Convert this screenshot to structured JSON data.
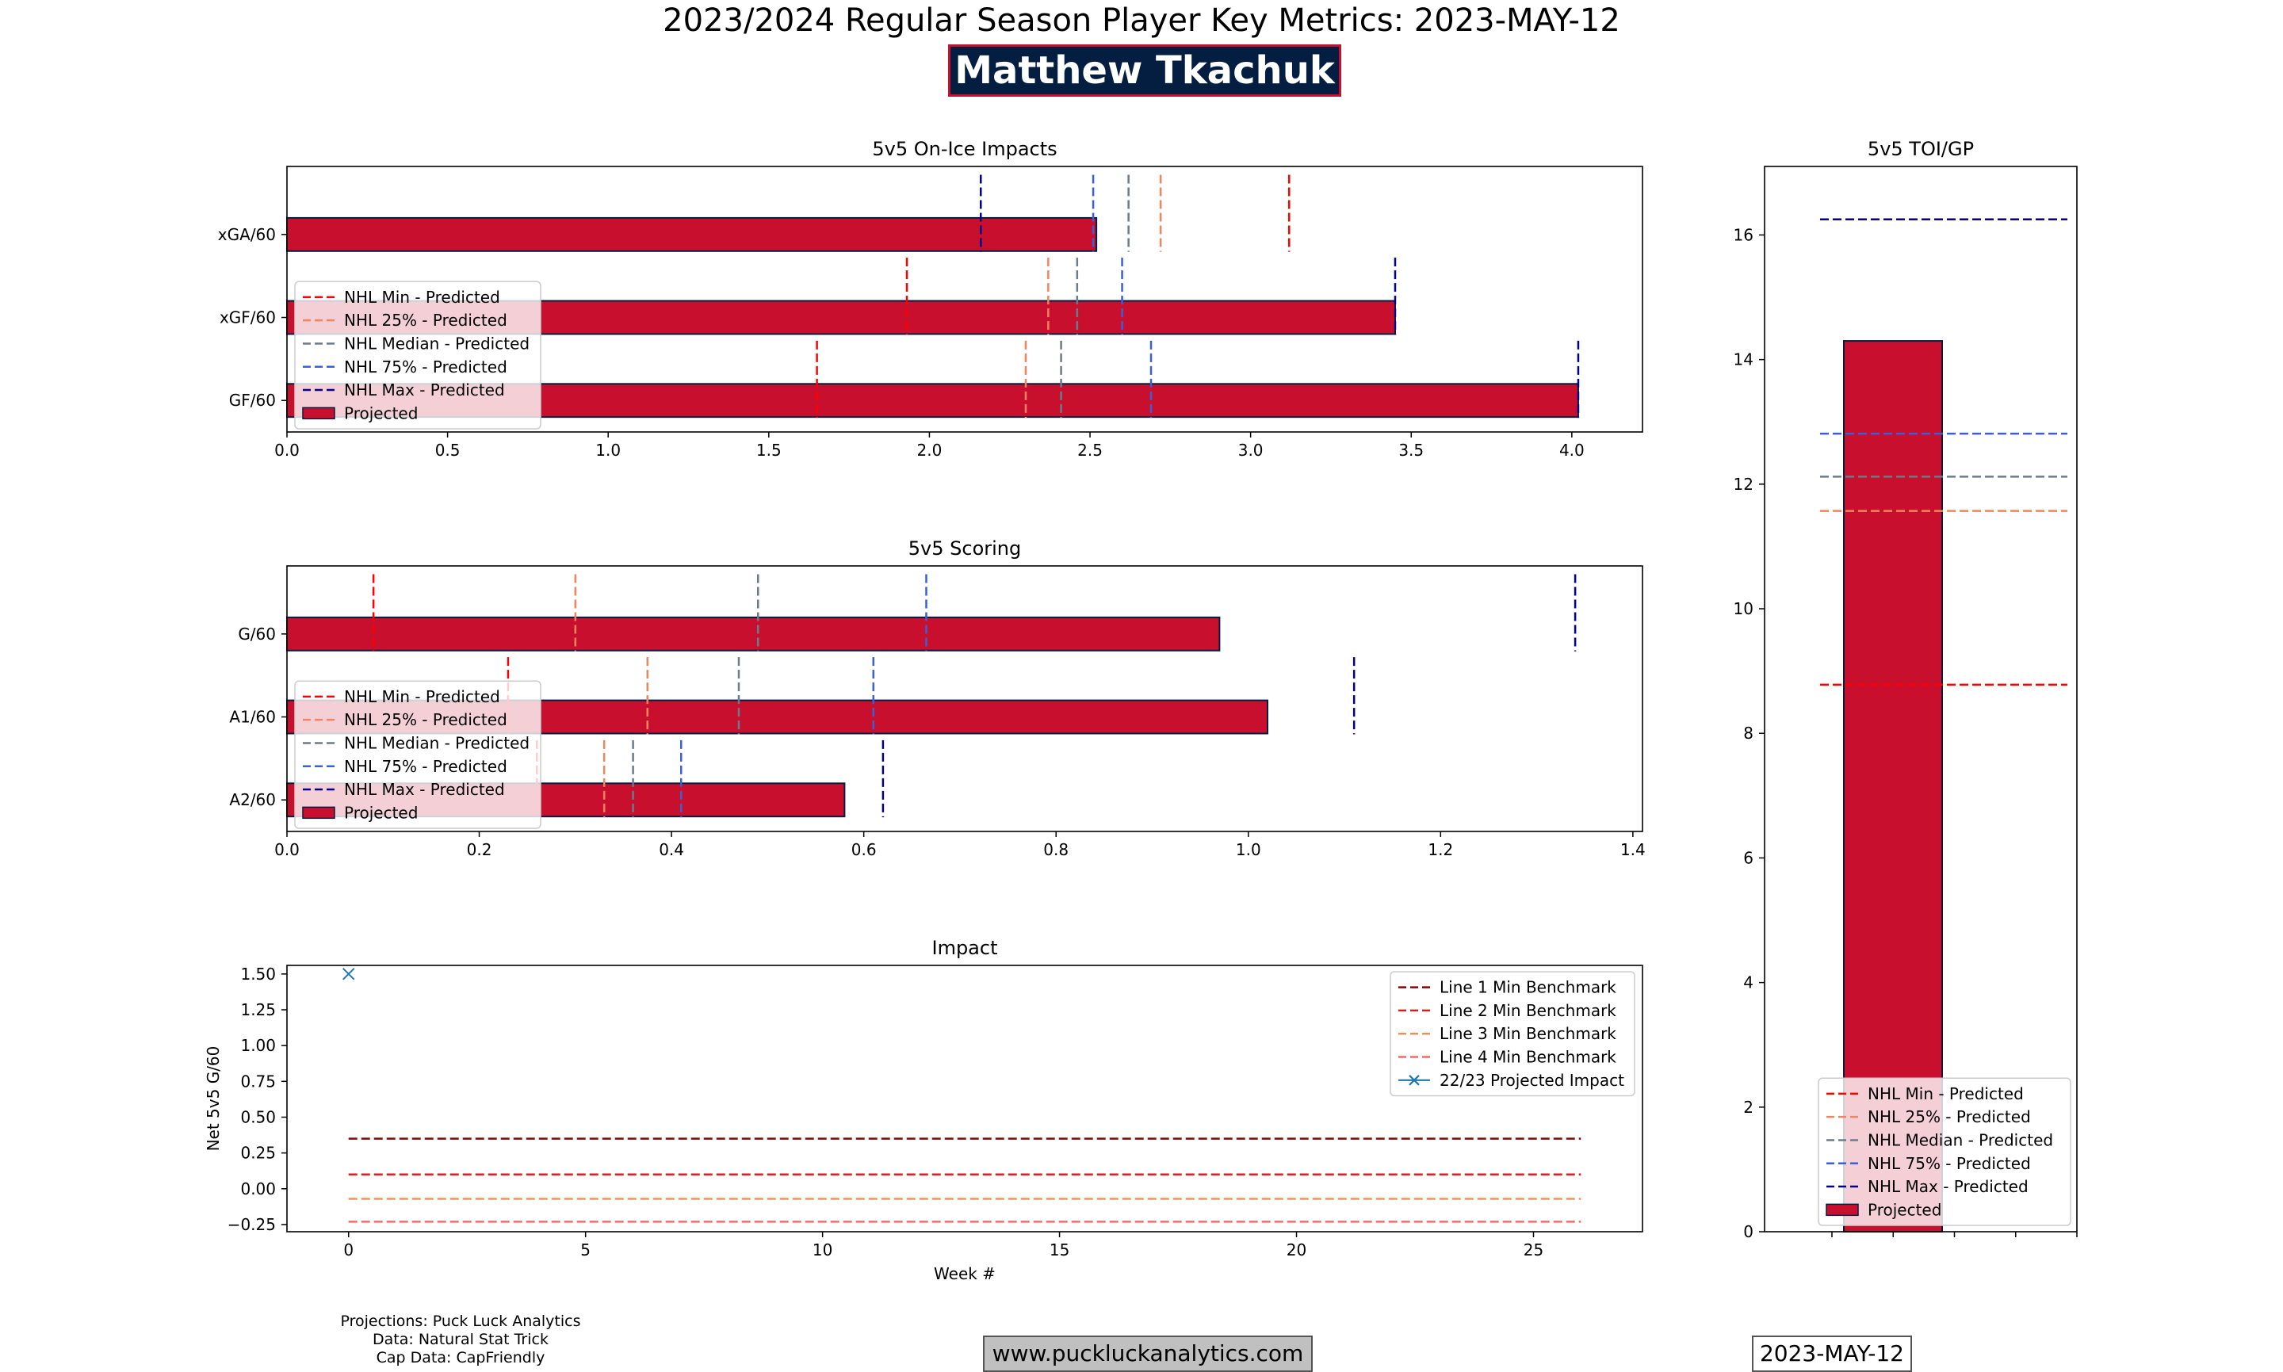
{
  "page": {
    "title": "2023/2024 Regular Season Player Key Metrics: 2023-MAY-12",
    "player_name": "Matthew Tkachuk",
    "credits": [
      "Projections: Puck Luck Analytics",
      "Data: Natural Stat Trick",
      "Cap Data: CapFriendly"
    ],
    "website": "www.puckluckanalytics.com",
    "date": "2023-MAY-12"
  },
  "colors": {
    "bar_fill": "#c8102e",
    "bar_edge": "#041e42",
    "nhl_min": "#ff0000",
    "nhl_25": "#f4845f",
    "nhl_median": "#6b7b8c",
    "nhl_75": "#3a5fd9",
    "nhl_max": "#00008b",
    "line1": "#8b0000",
    "line2": "#e31a1c",
    "line3": "#fc8d59",
    "line4": "#f26b6b",
    "impact_marker": "#1f77b4"
  },
  "chart_data": [
    {
      "id": "onice",
      "type": "bar",
      "orientation": "horizontal",
      "title": "5v5 On-Ice Impacts",
      "categories": [
        "xGA/60",
        "xGF/60",
        "GF/60"
      ],
      "values": [
        2.52,
        3.45,
        4.02
      ],
      "xlim": [
        0,
        4.22
      ],
      "xticks": [
        0.0,
        0.5,
        1.0,
        1.5,
        2.0,
        2.5,
        3.0,
        3.5,
        4.0
      ],
      "xtick_labels": [
        "0.0",
        "0.5",
        "1.0",
        "1.5",
        "2.0",
        "2.5",
        "3.0",
        "3.5",
        "4.0"
      ],
      "benchmarks": {
        "nhl_min": [
          3.12,
          1.93,
          1.65
        ],
        "nhl_25": [
          2.72,
          2.37,
          2.3
        ],
        "nhl_median": [
          2.62,
          2.46,
          2.41
        ],
        "nhl_75": [
          2.51,
          2.6,
          2.69
        ],
        "nhl_max": [
          2.16,
          3.45,
          4.02
        ]
      },
      "legend": [
        "NHL Min - Predicted",
        "NHL 25% - Predicted",
        "NHL Median - Predicted",
        "NHL 75% - Predicted",
        "NHL Max - Predicted",
        "Projected"
      ],
      "legend_position": "lower-left"
    },
    {
      "id": "scoring",
      "type": "bar",
      "orientation": "horizontal",
      "title": "5v5 Scoring",
      "categories": [
        "G/60",
        "A1/60",
        "A2/60"
      ],
      "values": [
        0.97,
        1.02,
        0.58
      ],
      "xlim": [
        0,
        1.41
      ],
      "xticks": [
        0.0,
        0.2,
        0.4,
        0.6,
        0.8,
        1.0,
        1.2,
        1.4
      ],
      "xtick_labels": [
        "0.0",
        "0.2",
        "0.4",
        "0.6",
        "0.8",
        "1.0",
        "1.2",
        "1.4"
      ],
      "benchmarks": {
        "nhl_min": [
          0.09,
          0.23,
          0.26
        ],
        "nhl_25": [
          0.3,
          0.375,
          0.33
        ],
        "nhl_median": [
          0.49,
          0.47,
          0.36
        ],
        "nhl_75": [
          0.665,
          0.61,
          0.41
        ],
        "nhl_max": [
          1.34,
          1.11,
          0.62
        ]
      },
      "legend": [
        "NHL Min - Predicted",
        "NHL 25% - Predicted",
        "NHL Median - Predicted",
        "NHL 75% - Predicted",
        "NHL Max - Predicted",
        "Projected"
      ],
      "legend_position": "lower-left"
    },
    {
      "id": "impact",
      "type": "line",
      "title": "Impact",
      "xlabel": "Week #",
      "ylabel": "Net 5v5 G/60",
      "xlim": [
        -1.3,
        27.3
      ],
      "ylim": [
        -0.3,
        1.56
      ],
      "xticks": [
        0,
        5,
        10,
        15,
        20,
        25
      ],
      "xtick_labels": [
        "0",
        "5",
        "10",
        "15",
        "20",
        "25"
      ],
      "yticks": [
        -0.25,
        0.0,
        0.25,
        0.5,
        0.75,
        1.0,
        1.25,
        1.5
      ],
      "ytick_labels": [
        "−0.25",
        "0.00",
        "0.25",
        "0.50",
        "0.75",
        "1.00",
        "1.25",
        "1.50"
      ],
      "series": [
        {
          "name": "Line 1 Min Benchmark",
          "x": [
            0,
            26
          ],
          "y": [
            0.35,
            0.35
          ],
          "style": "dashed"
        },
        {
          "name": "Line 2 Min Benchmark",
          "x": [
            0,
            26
          ],
          "y": [
            0.1,
            0.1
          ],
          "style": "dashed"
        },
        {
          "name": "Line 3 Min Benchmark",
          "x": [
            0,
            26
          ],
          "y": [
            -0.07,
            -0.07
          ],
          "style": "dashed"
        },
        {
          "name": "Line 4 Min Benchmark",
          "x": [
            0,
            26
          ],
          "y": [
            -0.23,
            -0.23
          ],
          "style": "dashed"
        },
        {
          "name": "22/23 Projected Impact",
          "x": [
            0
          ],
          "y": [
            1.5
          ],
          "style": "marker-x"
        }
      ],
      "legend_position": "upper-right"
    },
    {
      "id": "toi",
      "type": "bar",
      "orientation": "vertical",
      "title": "5v5 TOI/GP",
      "values": [
        14.3
      ],
      "ylim": [
        0,
        17.1
      ],
      "yticks": [
        0,
        2,
        4,
        6,
        8,
        10,
        12,
        14,
        16
      ],
      "ytick_labels": [
        "0",
        "2",
        "4",
        "6",
        "8",
        "10",
        "12",
        "14",
        "16"
      ],
      "benchmarks": {
        "nhl_min": [
          8.78
        ],
        "nhl_25": [
          11.57
        ],
        "nhl_median": [
          12.12
        ],
        "nhl_75": [
          12.81
        ],
        "nhl_max": [
          16.25
        ]
      },
      "legend": [
        "NHL Min - Predicted",
        "NHL 25% - Predicted",
        "NHL Median - Predicted",
        "NHL 75% - Predicted",
        "NHL Max - Predicted",
        "Projected"
      ],
      "legend_position": "lower-right"
    }
  ]
}
